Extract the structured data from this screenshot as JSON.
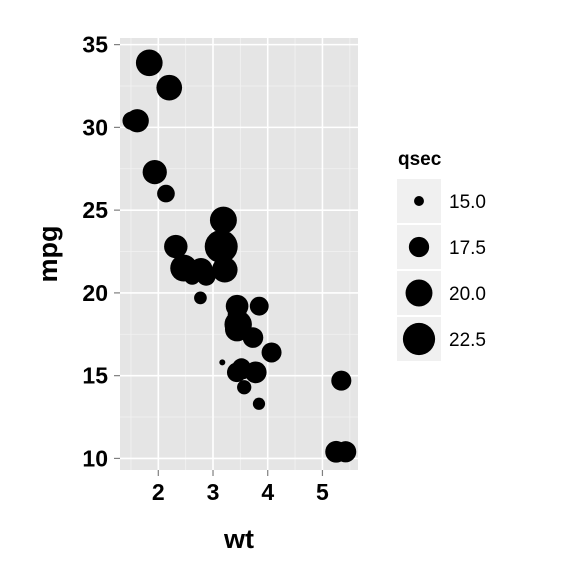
{
  "colors": {
    "panel": "#e5e5e5",
    "grid_major": "#ffffff",
    "grid_minor": "#f2f2f2",
    "point": "#000000",
    "legend_key_bg": "#f0f0f0"
  },
  "chart_data": {
    "type": "scatter",
    "xlabel": "wt",
    "ylabel": "mpg",
    "xlim": [
      1.3,
      5.65
    ],
    "ylim": [
      9.3,
      35.4
    ],
    "x_ticks": [
      2,
      3,
      4,
      5
    ],
    "y_ticks": [
      10,
      15,
      20,
      25,
      30,
      35
    ],
    "x_tick_labels": [
      "2",
      "3",
      "4",
      "5"
    ],
    "y_tick_labels": [
      "10",
      "15",
      "20",
      "25",
      "30",
      "35"
    ],
    "grid": true,
    "size_legend": {
      "title": "qsec",
      "placement": "right",
      "entries": [
        {
          "label": "15.0",
          "value": 15.0
        },
        {
          "label": "17.5",
          "value": 17.5
        },
        {
          "label": "20.0",
          "value": 20.0
        },
        {
          "label": "22.5",
          "value": 22.5
        }
      ]
    },
    "points": [
      {
        "wt": 2.62,
        "mpg": 21.0,
        "qsec": 16.46
      },
      {
        "wt": 2.875,
        "mpg": 21.0,
        "qsec": 17.02
      },
      {
        "wt": 2.32,
        "mpg": 22.8,
        "qsec": 18.61
      },
      {
        "wt": 3.215,
        "mpg": 21.4,
        "qsec": 19.44
      },
      {
        "wt": 3.44,
        "mpg": 18.7,
        "qsec": 17.02
      },
      {
        "wt": 3.46,
        "mpg": 18.1,
        "qsec": 20.22
      },
      {
        "wt": 3.57,
        "mpg": 14.3,
        "qsec": 15.84
      },
      {
        "wt": 3.19,
        "mpg": 24.4,
        "qsec": 20.0
      },
      {
        "wt": 3.15,
        "mpg": 22.8,
        "qsec": 22.9
      },
      {
        "wt": 3.44,
        "mpg": 19.2,
        "qsec": 18.3
      },
      {
        "wt": 3.44,
        "mpg": 17.8,
        "qsec": 18.9
      },
      {
        "wt": 4.07,
        "mpg": 16.4,
        "qsec": 17.4
      },
      {
        "wt": 3.73,
        "mpg": 17.3,
        "qsec": 17.6
      },
      {
        "wt": 3.78,
        "mpg": 15.2,
        "qsec": 18.0
      },
      {
        "wt": 5.25,
        "mpg": 10.4,
        "qsec": 17.98
      },
      {
        "wt": 5.424,
        "mpg": 10.4,
        "qsec": 17.82
      },
      {
        "wt": 5.345,
        "mpg": 14.7,
        "qsec": 17.42
      },
      {
        "wt": 2.2,
        "mpg": 32.4,
        "qsec": 19.47
      },
      {
        "wt": 1.615,
        "mpg": 30.4,
        "qsec": 18.52
      },
      {
        "wt": 1.835,
        "mpg": 33.9,
        "qsec": 19.9
      },
      {
        "wt": 2.465,
        "mpg": 21.5,
        "qsec": 20.01
      },
      {
        "wt": 3.52,
        "mpg": 15.5,
        "qsec": 16.87
      },
      {
        "wt": 3.435,
        "mpg": 15.2,
        "qsec": 17.3
      },
      {
        "wt": 3.84,
        "mpg": 13.3,
        "qsec": 15.41
      },
      {
        "wt": 3.845,
        "mpg": 19.2,
        "qsec": 17.05
      },
      {
        "wt": 1.935,
        "mpg": 27.3,
        "qsec": 18.9
      },
      {
        "wt": 2.14,
        "mpg": 26.0,
        "qsec": 16.7
      },
      {
        "wt": 1.513,
        "mpg": 30.4,
        "qsec": 16.9
      },
      {
        "wt": 3.17,
        "mpg": 15.8,
        "qsec": 14.5
      },
      {
        "wt": 2.77,
        "mpg": 19.7,
        "qsec": 15.5
      },
      {
        "wt": 3.57,
        "mpg": 15.0,
        "qsec": 14.6
      },
      {
        "wt": 2.78,
        "mpg": 21.4,
        "qsec": 18.6
      }
    ]
  }
}
